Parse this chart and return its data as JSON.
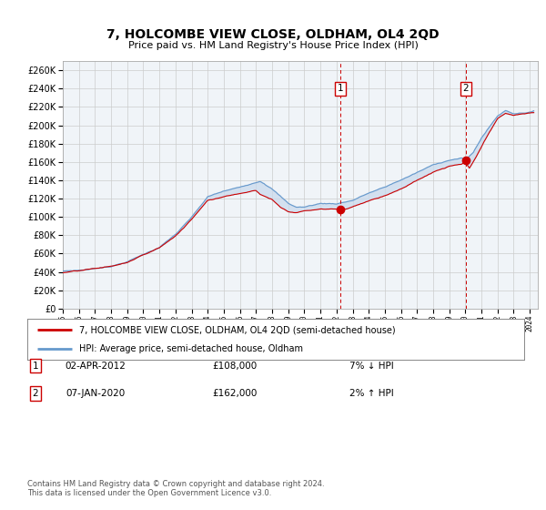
{
  "title": "7, HOLCOMBE VIEW CLOSE, OLDHAM, OL4 2QD",
  "subtitle": "Price paid vs. HM Land Registry's House Price Index (HPI)",
  "ylabel_ticks": [
    "£0",
    "£20K",
    "£40K",
    "£60K",
    "£80K",
    "£100K",
    "£120K",
    "£140K",
    "£160K",
    "£180K",
    "£200K",
    "£220K",
    "£240K",
    "£260K"
  ],
  "ytick_values": [
    0,
    20000,
    40000,
    60000,
    80000,
    100000,
    120000,
    140000,
    160000,
    180000,
    200000,
    220000,
    240000,
    260000
  ],
  "ylim": [
    0,
    270000
  ],
  "xlim_start": 1995.0,
  "xlim_end": 2024.5,
  "plot_bg_color": "#f0f4f8",
  "grid_color": "#cccccc",
  "fill_color": "#c8d8ec",
  "red_line_color": "#cc0000",
  "blue_line_color": "#6699cc",
  "marker1_year": 2012.25,
  "marker1_value": 108000,
  "marker2_year": 2020.03,
  "marker2_value": 162000,
  "transaction1_date": "02-APR-2012",
  "transaction1_price": "£108,000",
  "transaction1_note": "7% ↓ HPI",
  "transaction2_date": "07-JAN-2020",
  "transaction2_price": "£162,000",
  "transaction2_note": "2% ↑ HPI",
  "legend_line1": "7, HOLCOMBE VIEW CLOSE, OLDHAM, OL4 2QD (semi-detached house)",
  "legend_line2": "HPI: Average price, semi-detached house, Oldham",
  "footer": "Contains HM Land Registry data © Crown copyright and database right 2024.\nThis data is licensed under the Open Government Licence v3.0."
}
